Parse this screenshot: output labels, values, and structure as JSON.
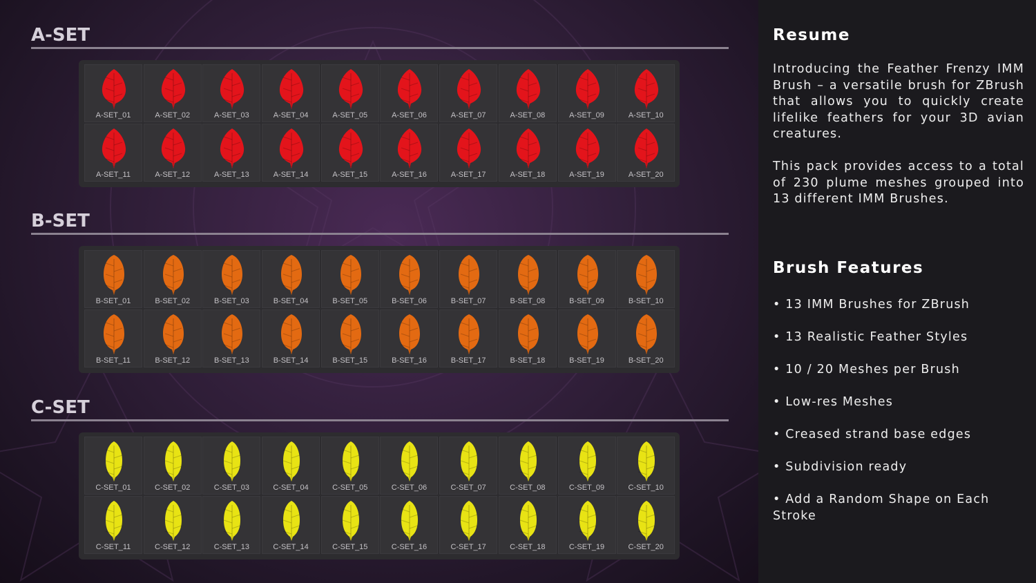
{
  "sets": [
    {
      "title": "A-SET",
      "color": "#e3141b",
      "shape": "leaf",
      "items": [
        "A-SET_01",
        "A-SET_02",
        "A-SET_03",
        "A-SET_04",
        "A-SET_05",
        "A-SET_06",
        "A-SET_07",
        "A-SET_08",
        "A-SET_09",
        "A-SET_10",
        "A-SET_11",
        "A-SET_12",
        "A-SET_13",
        "A-SET_14",
        "A-SET_15",
        "A-SET_16",
        "A-SET_17",
        "A-SET_18",
        "A-SET_19",
        "A-SET_20"
      ]
    },
    {
      "title": "B-SET",
      "color": "#e36a12",
      "shape": "oval",
      "items": [
        "B-SET_01",
        "B-SET_02",
        "B-SET_03",
        "B-SET_04",
        "B-SET_05",
        "B-SET_06",
        "B-SET_07",
        "B-SET_08",
        "B-SET_09",
        "B-SET_10",
        "B-SET_11",
        "B-SET_12",
        "B-SET_13",
        "B-SET_14",
        "B-SET_15",
        "B-SET_16",
        "B-SET_17",
        "B-SET_18",
        "B-SET_19",
        "B-SET_20"
      ]
    },
    {
      "title": "C-SET",
      "color": "#e8e314",
      "shape": "slim",
      "items": [
        "C-SET_01",
        "C-SET_02",
        "C-SET_03",
        "C-SET_04",
        "C-SET_05",
        "C-SET_06",
        "C-SET_07",
        "C-SET_08",
        "C-SET_09",
        "C-SET_10",
        "C-SET_11",
        "C-SET_12",
        "C-SET_13",
        "C-SET_14",
        "C-SET_15",
        "C-SET_16",
        "C-SET_17",
        "C-SET_18",
        "C-SET_19",
        "C-SET_20"
      ]
    }
  ],
  "resume": {
    "heading": "Resume",
    "paragraph1": "Introducing the Feather Frenzy IMM Brush – a versatile brush for ZBrush that allows you to quickly create lifelike feathers for your 3D avian creatures.",
    "paragraph2": "This pack provides access to a total of 230 plume meshes grouped into 13 different IMM Brushes."
  },
  "features": {
    "heading": "Brush Features",
    "items": [
      "• 13 IMM Brushes for ZBrush",
      "• 13 Realistic Feather Styles",
      "• 10 / 20 Meshes per Brush",
      "• Low-res Meshes",
      "• Creased strand base edges",
      "• Subdivision ready",
      "• Add a Random Shape on Each Stroke"
    ]
  }
}
